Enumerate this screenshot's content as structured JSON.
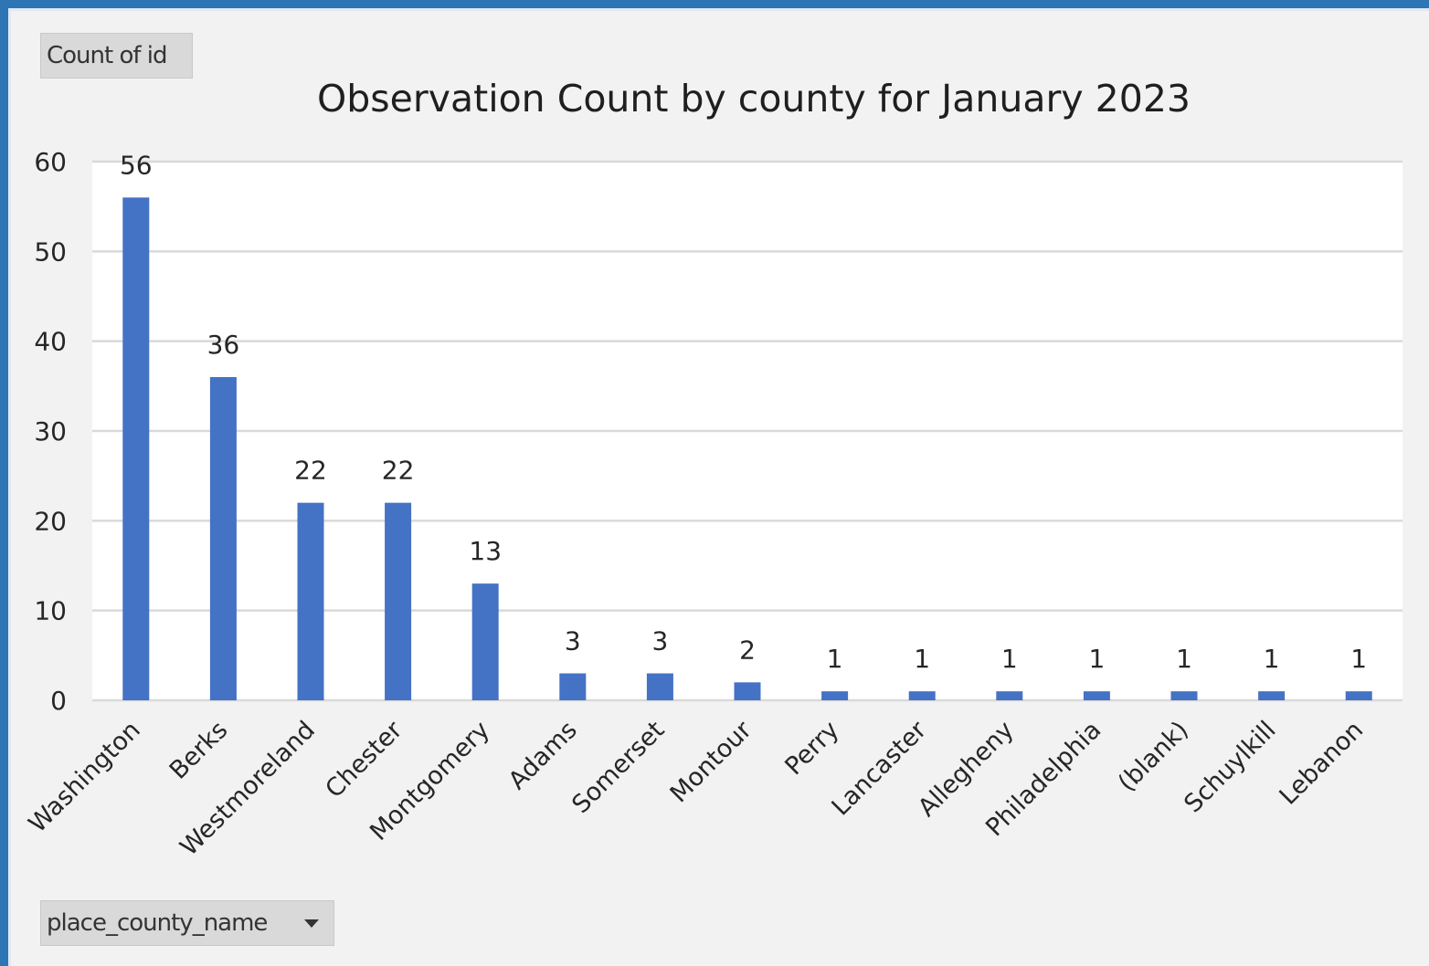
{
  "pivot": {
    "value_field_label": "Count of id",
    "axis_field_label": "place_county_name"
  },
  "colors": {
    "bar": "#4472c4",
    "gridline": "#d9d9d9",
    "plot_background": "#ffffff",
    "chart_background": "#f2f2f2",
    "frame_border": "#2e75b6"
  },
  "chart_data": {
    "type": "bar",
    "title": "Observation Count by county for January 2023",
    "xlabel": "",
    "ylabel": "",
    "categories": [
      "Washington",
      "Berks",
      "Westmoreland",
      "Chester",
      "Montgomery",
      "Adams",
      "Somerset",
      "Montour",
      "Perry",
      "Lancaster",
      "Allegheny",
      "Philadelphia",
      "(blank)",
      "Schuylkill",
      "Lebanon"
    ],
    "values": [
      56,
      36,
      22,
      22,
      13,
      3,
      3,
      2,
      1,
      1,
      1,
      1,
      1,
      1,
      1
    ],
    "ylim": [
      0,
      60
    ],
    "yticks": [
      0,
      10,
      20,
      30,
      40,
      50,
      60
    ],
    "grid": true,
    "legend": "none",
    "data_labels": true
  }
}
